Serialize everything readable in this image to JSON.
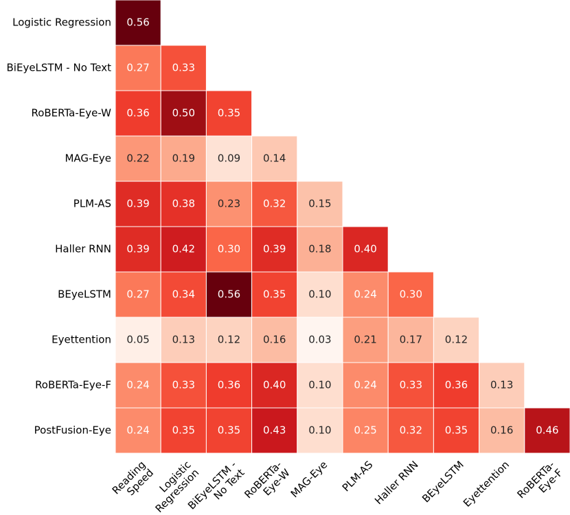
{
  "chart_data": {
    "type": "heatmap",
    "rows": [
      "Logistic Regression",
      "BiEyeLSTM - No Text",
      "RoBERTa-Eye-W",
      "MAG-Eye",
      "PLM-AS",
      "Haller RNN",
      "BEyeLSTM",
      "Eyettention",
      "RoBERTa-Eye-F",
      "PostFusion-Eye"
    ],
    "columns": [
      "Reading\nSpeed",
      "Logistic\nRegression",
      "BiEyeLSTM -\nNo Text",
      "RoBERTa-\nEye-W",
      "MAG-Eye",
      "PLM-AS",
      "Haller RNN",
      "BEyeLSTM",
      "Eyettention",
      "RoBERTa-\nEye-F"
    ],
    "values": [
      [
        0.56
      ],
      [
        0.27,
        0.33
      ],
      [
        0.36,
        0.5,
        0.35
      ],
      [
        0.22,
        0.19,
        0.09,
        0.14
      ],
      [
        0.39,
        0.38,
        0.23,
        0.32,
        0.15
      ],
      [
        0.39,
        0.42,
        0.3,
        0.39,
        0.18,
        0.4
      ],
      [
        0.27,
        0.34,
        0.56,
        0.35,
        0.1,
        0.24,
        0.3
      ],
      [
        0.05,
        0.13,
        0.12,
        0.16,
        0.03,
        0.21,
        0.17,
        0.12
      ],
      [
        0.24,
        0.33,
        0.36,
        0.4,
        0.1,
        0.24,
        0.33,
        0.36,
        0.13
      ],
      [
        0.24,
        0.35,
        0.35,
        0.43,
        0.1,
        0.25,
        0.32,
        0.35,
        0.16,
        0.46
      ]
    ],
    "value_labels": [
      [
        "0.56"
      ],
      [
        "0.27",
        "0.33"
      ],
      [
        "0.36",
        "0.50",
        "0.35"
      ],
      [
        "0.22",
        "0.19",
        "0.09",
        "0.14"
      ],
      [
        "0.39",
        "0.38",
        "0.23",
        "0.32",
        "0.15"
      ],
      [
        "0.39",
        "0.42",
        "0.30",
        "0.39",
        "0.18",
        "0.40"
      ],
      [
        "0.27",
        "0.34",
        "0.56",
        "0.35",
        "0.10",
        "0.24",
        "0.30"
      ],
      [
        "0.05",
        "0.13",
        "0.12",
        "0.16",
        "0.03",
        "0.21",
        "0.17",
        "0.12"
      ],
      [
        "0.24",
        "0.33",
        "0.36",
        "0.40",
        "0.10",
        "0.24",
        "0.33",
        "0.36",
        "0.13"
      ],
      [
        "0.24",
        "0.35",
        "0.35",
        "0.43",
        "0.10",
        "0.25",
        "0.32",
        "0.35",
        "0.16",
        "0.46"
      ]
    ],
    "colormap": "Reds"
  }
}
